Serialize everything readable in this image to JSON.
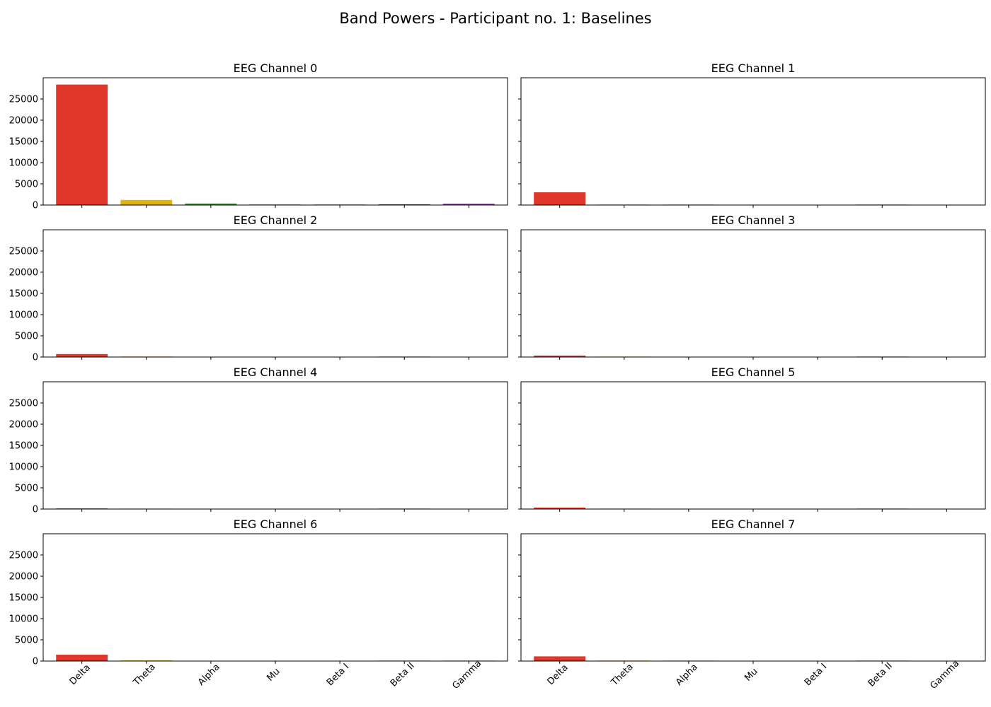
{
  "suptitle": "Band Powers - Participant no. 1: Baselines",
  "colors": [
    "#e0372b",
    "#e1b40f",
    "#3b8b3b",
    "#1f7a6e",
    "#3a4ab0",
    "#2b1e8c",
    "#7d3a91"
  ],
  "chart_data": [
    {
      "type": "bar",
      "title": "EEG Channel 0",
      "categories": [
        "Delta",
        "Theta",
        "Alpha",
        "Mu",
        "Beta I",
        "Beta II",
        "Gamma"
      ],
      "values": [
        28400,
        1200,
        350,
        120,
        110,
        150,
        300
      ],
      "ylim": [
        0,
        30000
      ],
      "yticks": [
        0,
        5000,
        10000,
        15000,
        20000,
        25000
      ],
      "xlabel": "",
      "ylabel": "",
      "grid": false
    },
    {
      "type": "bar",
      "title": "EEG Channel 1",
      "categories": [
        "Delta",
        "Theta",
        "Alpha",
        "Mu",
        "Beta I",
        "Beta II",
        "Gamma"
      ],
      "values": [
        3000,
        120,
        100,
        80,
        30,
        100,
        80
      ],
      "ylim": [
        0,
        30000
      ],
      "yticks": [
        0,
        5000,
        10000,
        15000,
        20000,
        25000
      ],
      "xlabel": "",
      "ylabel": "",
      "grid": false
    },
    {
      "type": "bar",
      "title": "EEG Channel 2",
      "categories": [
        "Delta",
        "Theta",
        "Alpha",
        "Mu",
        "Beta I",
        "Beta II",
        "Gamma"
      ],
      "values": [
        700,
        120,
        30,
        20,
        30,
        100,
        80
      ],
      "ylim": [
        0,
        30000
      ],
      "yticks": [
        0,
        5000,
        10000,
        15000,
        20000,
        25000
      ],
      "xlabel": "",
      "ylabel": "",
      "grid": false
    },
    {
      "type": "bar",
      "title": "EEG Channel 3",
      "categories": [
        "Delta",
        "Theta",
        "Alpha",
        "Mu",
        "Beta I",
        "Beta II",
        "Gamma"
      ],
      "values": [
        350,
        100,
        20,
        20,
        20,
        100,
        80
      ],
      "ylim": [
        0,
        30000
      ],
      "yticks": [
        0,
        5000,
        10000,
        15000,
        20000,
        25000
      ],
      "xlabel": "",
      "ylabel": "",
      "grid": false
    },
    {
      "type": "bar",
      "title": "EEG Channel 4",
      "categories": [
        "Delta",
        "Theta",
        "Alpha",
        "Mu",
        "Beta I",
        "Beta II",
        "Gamma"
      ],
      "values": [
        150,
        100,
        20,
        20,
        20,
        100,
        80
      ],
      "ylim": [
        0,
        30000
      ],
      "yticks": [
        0,
        5000,
        10000,
        15000,
        20000,
        25000
      ],
      "xlabel": "",
      "ylabel": "",
      "grid": false
    },
    {
      "type": "bar",
      "title": "EEG Channel 5",
      "categories": [
        "Delta",
        "Theta",
        "Alpha",
        "Mu",
        "Beta I",
        "Beta II",
        "Gamma"
      ],
      "values": [
        350,
        100,
        20,
        20,
        20,
        100,
        80
      ],
      "ylim": [
        0,
        30000
      ],
      "yticks": [
        0,
        5000,
        10000,
        15000,
        20000,
        25000
      ],
      "xlabel": "",
      "ylabel": "",
      "grid": false
    },
    {
      "type": "bar",
      "title": "EEG Channel 6",
      "categories": [
        "Delta",
        "Theta",
        "Alpha",
        "Mu",
        "Beta I",
        "Beta II",
        "Gamma"
      ],
      "values": [
        1500,
        150,
        30,
        20,
        60,
        100,
        100
      ],
      "ylim": [
        0,
        30000
      ],
      "yticks": [
        0,
        5000,
        10000,
        15000,
        20000,
        25000
      ],
      "xlabel": "",
      "ylabel": "",
      "grid": false
    },
    {
      "type": "bar",
      "title": "EEG Channel 7",
      "categories": [
        "Delta",
        "Theta",
        "Alpha",
        "Mu",
        "Beta I",
        "Beta II",
        "Gamma"
      ],
      "values": [
        1100,
        120,
        100,
        80,
        80,
        100,
        80
      ],
      "ylim": [
        0,
        30000
      ],
      "yticks": [
        0,
        5000,
        10000,
        15000,
        20000,
        25000
      ],
      "xlabel": "",
      "ylabel": "",
      "grid": false
    }
  ]
}
